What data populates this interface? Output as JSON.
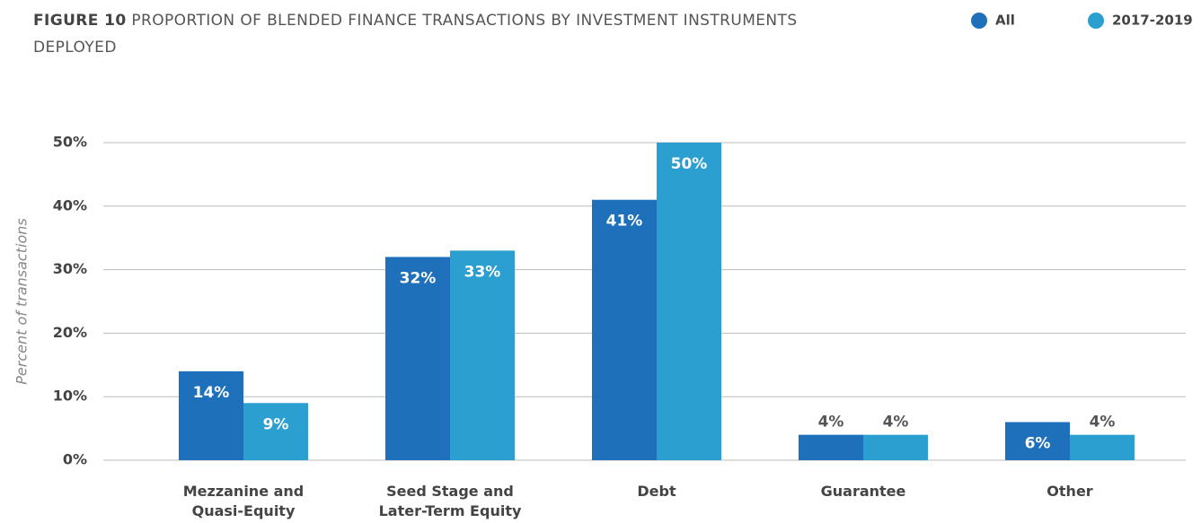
{
  "chart_data": {
    "type": "bar",
    "figure_label": "FIGURE 10",
    "title": "PROPORTION OF BLENDED FINANCE TRANSACTIONS BY INVESTMENT INSTRUMENTS DEPLOYED",
    "y_label": "Percent of transactions",
    "categories": [
      "Mezzanine and Quasi-Equity",
      "Seed Stage and Later-Term Equity",
      "Debt",
      "Guarantee",
      "Other"
    ],
    "series": [
      {
        "name": "All",
        "color": "#1f70bb",
        "values": [
          14,
          32,
          41,
          4,
          6
        ],
        "value_labels": [
          "14%",
          "32%",
          "41%",
          "4%",
          "6%"
        ]
      },
      {
        "name": "2017-2019",
        "color": "#2a9fd0",
        "values": [
          9,
          33,
          50,
          4,
          4
        ],
        "value_labels": [
          "9%",
          "33%",
          "50%",
          "4%",
          "4%"
        ]
      }
    ],
    "ylim": [
      0,
      50
    ],
    "yticks": [
      {
        "value": 0,
        "label": "0%"
      },
      {
        "value": 10,
        "label": "10%"
      },
      {
        "value": 20,
        "label": "20%"
      },
      {
        "value": 30,
        "label": "30%"
      },
      {
        "value": 40,
        "label": "40%"
      },
      {
        "value": 50,
        "label": "50%"
      }
    ],
    "grid": true,
    "legend": "top-right"
  }
}
